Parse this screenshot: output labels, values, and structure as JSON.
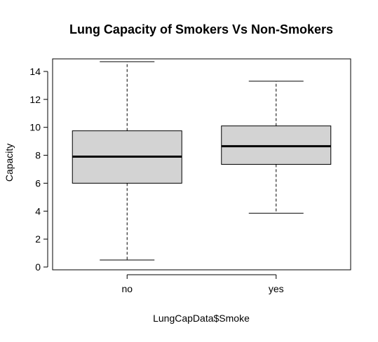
{
  "chart_data": {
    "type": "boxplot",
    "title": "Lung Capacity of Smokers Vs Non-Smokers",
    "xlabel": "LungCapData$Smoke",
    "ylabel": "Capacity",
    "categories": [
      "no",
      "yes"
    ],
    "boxes": [
      {
        "category": "no",
        "whisker_low": 0.5,
        "q1": 6.0,
        "median": 7.9,
        "q3": 9.75,
        "whisker_high": 14.7
      },
      {
        "category": "yes",
        "whisker_low": 3.85,
        "q1": 7.35,
        "median": 8.65,
        "q3": 10.1,
        "whisker_high": 13.3
      }
    ],
    "ylim": [
      -0.2,
      14.9
    ],
    "y_ticks": [
      0,
      2,
      4,
      6,
      8,
      10,
      12,
      14
    ],
    "grid": false,
    "box_fill": "#d3d3d3"
  }
}
